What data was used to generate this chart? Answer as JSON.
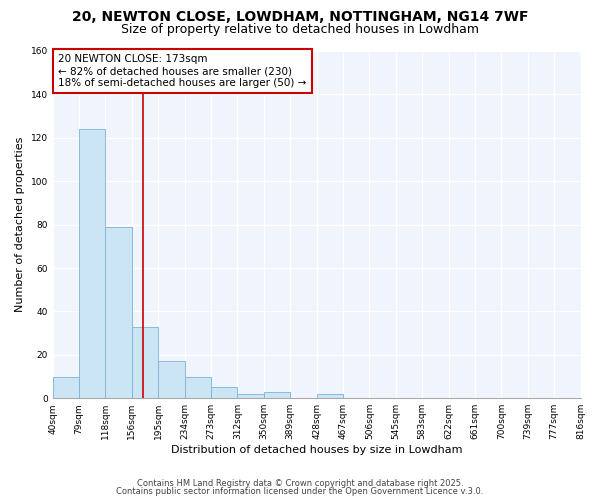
{
  "title_line1": "20, NEWTON CLOSE, LOWDHAM, NOTTINGHAM, NG14 7WF",
  "subtitle_text": "Size of property relative to detached houses in Lowdham",
  "xlabel": "Distribution of detached houses by size in Lowdham",
  "ylabel": "Number of detached properties",
  "bin_edges": [
    40,
    79,
    118,
    157,
    196,
    235,
    274,
    313,
    352,
    391,
    430,
    469,
    508,
    547,
    586,
    625,
    664,
    703,
    742,
    781,
    820
  ],
  "bin_labels": [
    "40sqm",
    "79sqm",
    "118sqm",
    "156sqm",
    "195sqm",
    "234sqm",
    "273sqm",
    "312sqm",
    "350sqm",
    "389sqm",
    "428sqm",
    "467sqm",
    "506sqm",
    "545sqm",
    "583sqm",
    "622sqm",
    "661sqm",
    "700sqm",
    "739sqm",
    "777sqm",
    "816sqm"
  ],
  "counts": [
    10,
    124,
    79,
    33,
    17,
    10,
    5,
    2,
    3,
    0,
    2,
    0,
    0,
    0,
    0,
    0,
    0,
    0,
    0,
    0
  ],
  "bar_color": "#cce5f5",
  "bar_edge_color": "#7ab3d9",
  "subject_value": 173,
  "ref_line_color": "#cc0000",
  "annot_line1": "20 NEWTON CLOSE: 173sqm",
  "annot_line2": "← 82% of detached houses are smaller (230)",
  "annot_line3": "18% of semi-detached houses are larger (50) →",
  "annot_box_edge_color": "#cc0000",
  "ylim": [
    0,
    160
  ],
  "xlim_start": 40,
  "xlim_end": 820,
  "bg_color": "#ffffff",
  "plot_bg_color": "#f0f4fc",
  "grid_color": "#ffffff",
  "yticks": [
    0,
    20,
    40,
    60,
    80,
    100,
    120,
    140,
    160
  ],
  "footer_line1": "Contains HM Land Registry data © Crown copyright and database right 2025.",
  "footer_line2": "Contains public sector information licensed under the Open Government Licence v.3.0.",
  "title_fontsize": 10,
  "subtitle_fontsize": 9,
  "ylabel_fontsize": 8,
  "xlabel_fontsize": 8,
  "tick_fontsize": 6.5,
  "annot_fontsize": 7.5
}
